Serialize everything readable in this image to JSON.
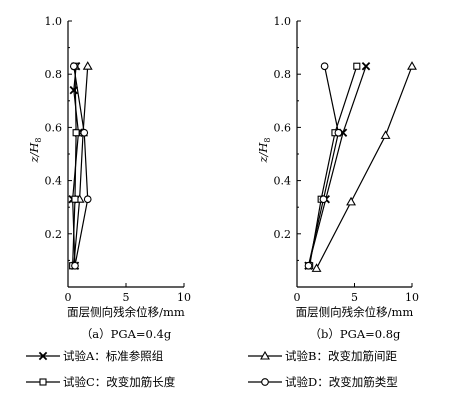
{
  "chart_data": [
    {
      "type": "line",
      "panel_label": "（a）PGA=0.4g",
      "xlabel": "面层侧向残余位移/mm",
      "ylabel": "z/H",
      "ylabel_subscript": "8",
      "xlim": [
        0,
        10
      ],
      "ylim": [
        0,
        1.0
      ],
      "xticks": [
        "0",
        "5",
        "10"
      ],
      "yticks": [
        "0.2",
        "0.4",
        "0.6",
        "0.8",
        "1.0"
      ],
      "grid": false,
      "series": [
        {
          "name": "试验A：标准参照组",
          "marker": "cross",
          "x": [
            0.6,
            0.4,
            0.9,
            0.5,
            0.7
          ],
          "y": [
            0.08,
            0.33,
            0.58,
            0.74,
            0.83
          ]
        },
        {
          "name": "试验B：改变加筋间距",
          "marker": "triangle",
          "x": [
            0.5,
            1.0,
            1.3,
            1.7
          ],
          "y": [
            0.08,
            0.33,
            0.58,
            0.83
          ]
        },
        {
          "name": "试验C：改变加筋长度",
          "marker": "square",
          "x": [
            0.4,
            0.6,
            0.7,
            0.6
          ],
          "y": [
            0.08,
            0.33,
            0.58,
            0.83
          ]
        },
        {
          "name": "试验D：改变加筋类型",
          "marker": "circle",
          "x": [
            0.6,
            1.7,
            1.4,
            0.5
          ],
          "y": [
            0.08,
            0.33,
            0.58,
            0.83
          ]
        }
      ]
    },
    {
      "type": "line",
      "panel_label": "（b）PGA=0.8g",
      "xlabel": "面层侧向残余位移/mm",
      "ylabel": "z/H",
      "ylabel_subscript": "8",
      "xlim": [
        0,
        10
      ],
      "ylim": [
        0,
        1.0
      ],
      "xticks": [
        "0",
        "5",
        "10"
      ],
      "yticks": [
        "0.2",
        "0.4",
        "0.6",
        "0.8",
        "1.0"
      ],
      "grid": false,
      "series": [
        {
          "name": "试验A：标准参照组",
          "marker": "cross",
          "x": [
            1.0,
            2.5,
            4.0,
            6.0
          ],
          "y": [
            0.08,
            0.33,
            0.58,
            0.83
          ]
        },
        {
          "name": "试验B：改变加筋间距",
          "marker": "triangle",
          "x": [
            1.7,
            4.7,
            7.7,
            10.0
          ],
          "y": [
            0.07,
            0.32,
            0.57,
            0.83
          ]
        },
        {
          "name": "试验C：改变加筋长度",
          "marker": "square",
          "x": [
            1.1,
            2.1,
            3.3,
            5.2
          ],
          "y": [
            0.08,
            0.33,
            0.58,
            0.83
          ]
        },
        {
          "name": "试验D：改变加筋类型",
          "marker": "circle",
          "x": [
            1.0,
            2.3,
            3.6,
            2.4
          ],
          "y": [
            0.08,
            0.33,
            0.58,
            0.83
          ]
        }
      ]
    }
  ],
  "legend": [
    {
      "marker": "cross",
      "label": "试验A：标准参照组"
    },
    {
      "marker": "triangle",
      "label": "试验B：改变加筋间距"
    },
    {
      "marker": "square",
      "label": "试验C：改变加筋长度"
    },
    {
      "marker": "circle",
      "label": "试验D：改变加筋类型"
    }
  ]
}
